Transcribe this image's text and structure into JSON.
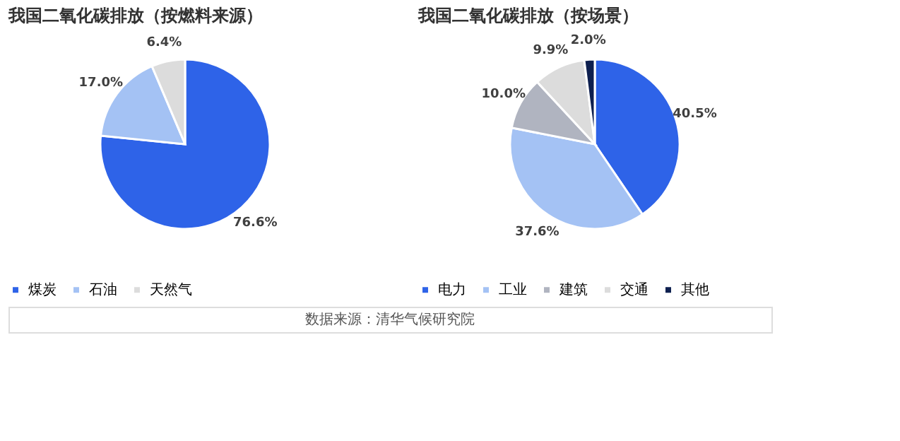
{
  "chart_data": [
    {
      "type": "pie",
      "title": "我国二氧化碳排放（按燃料来源）",
      "categories": [
        "煤炭",
        "石油",
        "天然气"
      ],
      "values": [
        76.6,
        17.0,
        6.4
      ],
      "colors": [
        "#2e63e8",
        "#a4c2f4",
        "#dcdcdc"
      ],
      "value_labels": [
        "76.6%",
        "17.0%",
        "6.4%"
      ],
      "legend": "bottom",
      "annotations": [
        "数据来源：清华气候研究院"
      ]
    },
    {
      "type": "pie",
      "title": "我国二氧化碳排放（按场景）",
      "categories": [
        "电力",
        "工业",
        "建筑",
        "交通",
        "其他"
      ],
      "values": [
        40.5,
        37.6,
        10.0,
        9.9,
        2.0
      ],
      "colors": [
        "#2e63e8",
        "#a4c2f4",
        "#b0b4c0",
        "#dcdcdc",
        "#0d1f4f"
      ],
      "value_labels": [
        "40.5%",
        "37.6%",
        "10.0%",
        "9.9%",
        "2.0%"
      ],
      "legend": "bottom"
    }
  ]
}
